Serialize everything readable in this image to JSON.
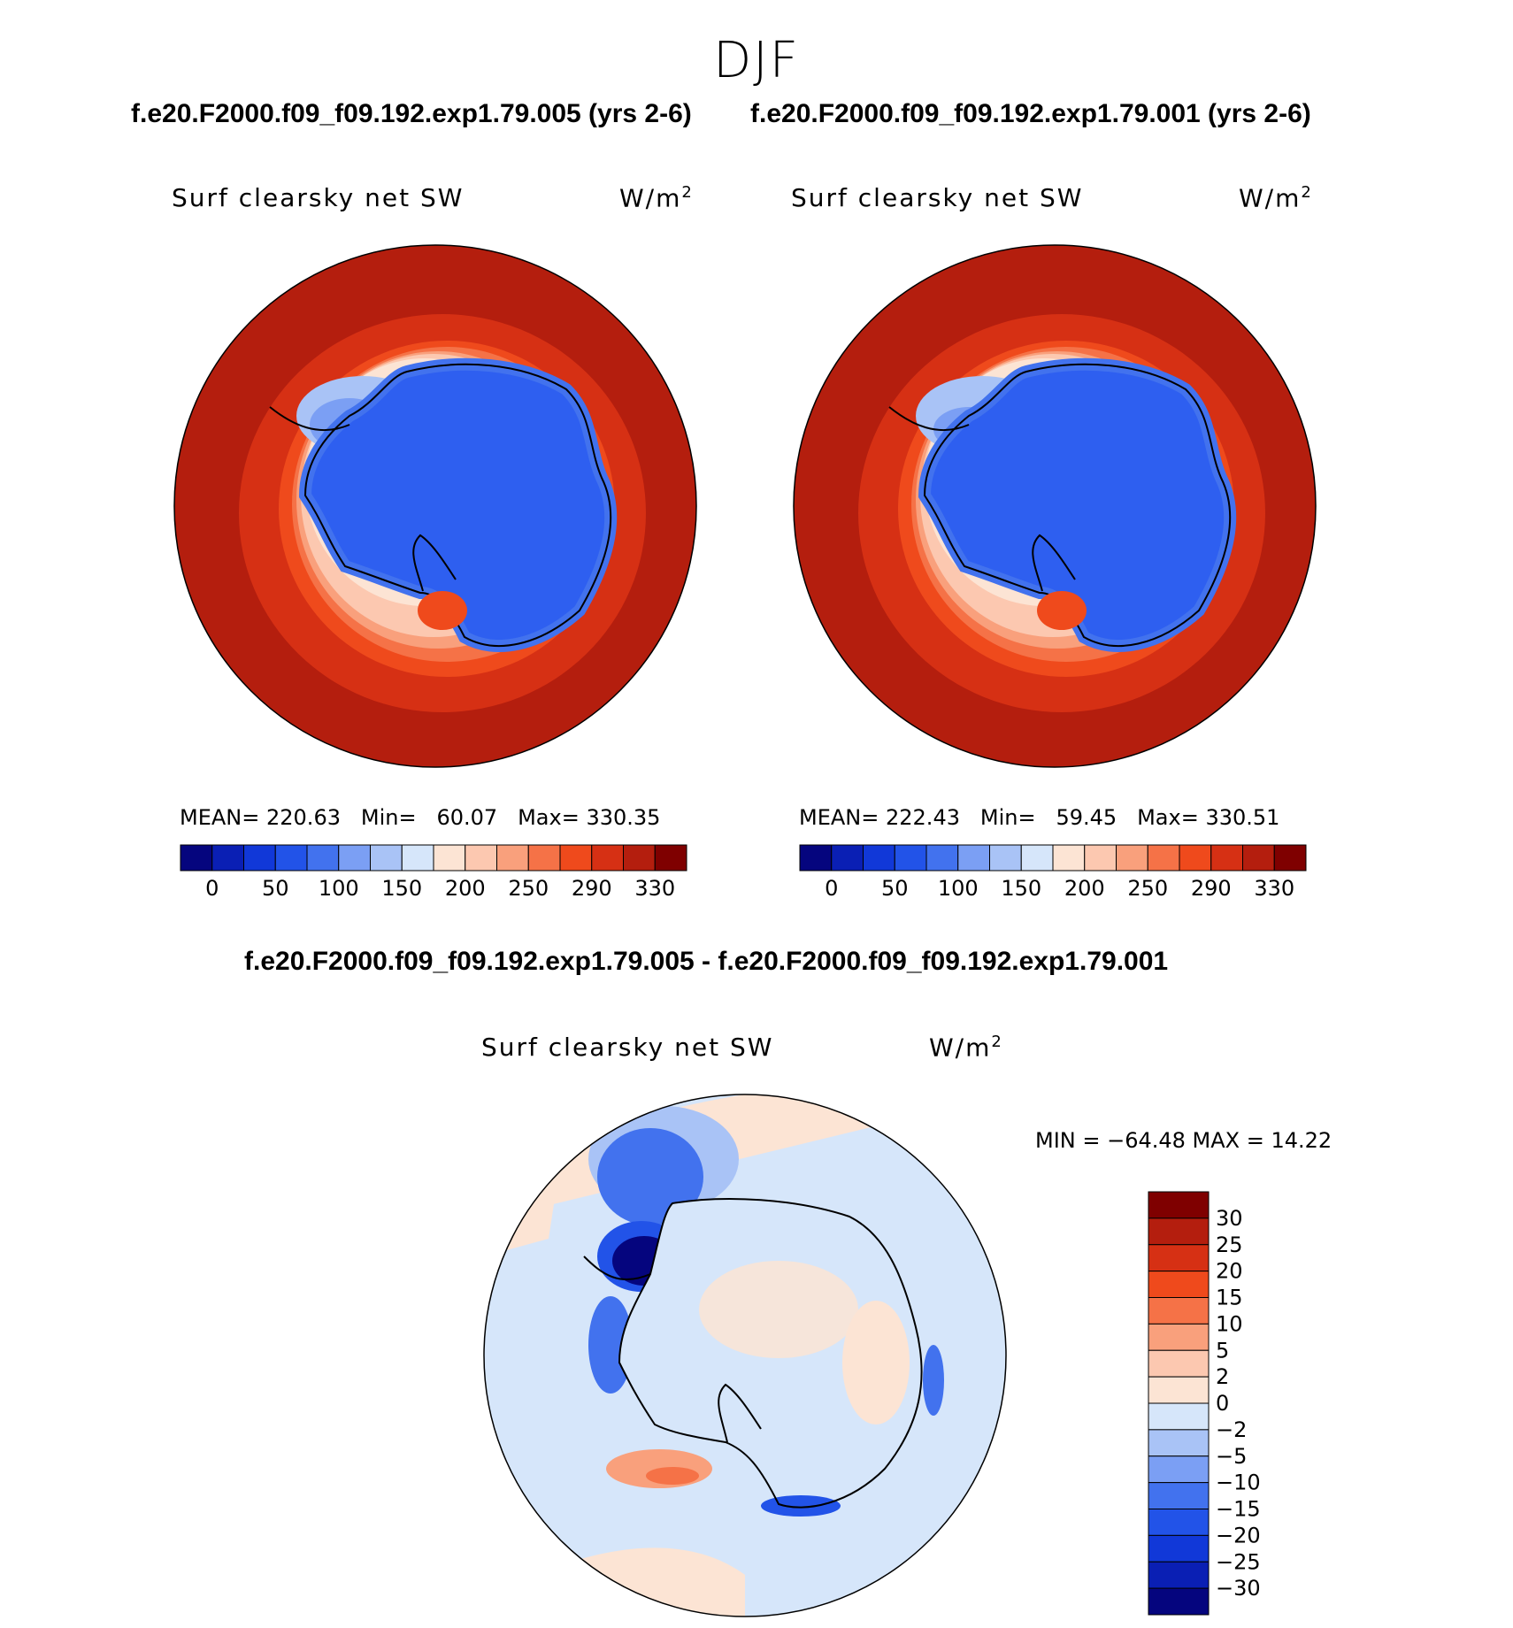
{
  "season": "DJF",
  "panel_titles": {
    "left": "f.e20.F2000.f09_f09.192.exp1.79.005 (yrs 2-6)",
    "right": "f.e20.F2000.f09_f09.192.exp1.79.001 (yrs 2-6)",
    "diff": "f.e20.F2000.f09_f09.192.exp1.79.005 - f.e20.F2000.f09_f09.192.exp1.79.001"
  },
  "variable": "Surf clearsky net SW",
  "units_base": "W/m",
  "units_exp": "2",
  "stats": {
    "left": {
      "mean_label": "MEAN=",
      "mean": "220.63",
      "min_label": "Min=",
      "min": "60.07",
      "max_label": "Max=",
      "max": "330.35"
    },
    "right": {
      "mean_label": "MEAN=",
      "mean": "222.43",
      "min_label": "Min=",
      "min": "59.45",
      "max_label": "Max=",
      "max": "330.51"
    },
    "diff": {
      "text": "MIN = −64.48 MAX =   14.22"
    }
  },
  "chart_data": [
    {
      "type": "heatmap",
      "title": "f.e20.F2000.f09_f09.192.exp1.79.005 (yrs 2-6)",
      "variable": "Surf clearsky net SW",
      "units": "W/m2",
      "projection": "south polar stereographic",
      "mean": 220.63,
      "min": 60.07,
      "max": 330.35,
      "colorbar_ticks": [
        "0",
        "50",
        "100",
        "150",
        "200",
        "250",
        "290",
        "330"
      ],
      "colorbar_colors": [
        "#05057e",
        "#0a1fb4",
        "#1138d8",
        "#2253e8",
        "#4272ee",
        "#7b9ff4",
        "#a9c3f6",
        "#d6e6fa",
        "#fce4d4",
        "#fcc8b0",
        "#f9a07c",
        "#f57247",
        "#ef4a1c",
        "#d63014",
        "#b41e0e",
        "#7f0000"
      ]
    },
    {
      "type": "heatmap",
      "title": "f.e20.F2000.f09_f09.192.exp1.79.001 (yrs 2-6)",
      "variable": "Surf clearsky net SW",
      "units": "W/m2",
      "projection": "south polar stereographic",
      "mean": 222.43,
      "min": 59.45,
      "max": 330.51,
      "colorbar_ticks": [
        "0",
        "50",
        "100",
        "150",
        "200",
        "250",
        "290",
        "330"
      ],
      "colorbar_colors": [
        "#05057e",
        "#0a1fb4",
        "#1138d8",
        "#2253e8",
        "#4272ee",
        "#7b9ff4",
        "#a9c3f6",
        "#d6e6fa",
        "#fce4d4",
        "#fcc8b0",
        "#f9a07c",
        "#f57247",
        "#ef4a1c",
        "#d63014",
        "#b41e0e",
        "#7f0000"
      ]
    },
    {
      "type": "heatmap",
      "title": "f.e20.F2000.f09_f09.192.exp1.79.005 - f.e20.F2000.f09_f09.192.exp1.79.001",
      "variable": "Surf clearsky net SW",
      "units": "W/m2",
      "projection": "south polar stereographic",
      "min": -64.48,
      "max": 14.22,
      "colorbar_ticks": [
        "30",
        "25",
        "20",
        "15",
        "10",
        "5",
        "2",
        "0",
        "−2",
        "−5",
        "−10",
        "−15",
        "−20",
        "−25",
        "−30"
      ],
      "colorbar_colors": [
        "#7f0000",
        "#b41e0e",
        "#d63014",
        "#ef4a1c",
        "#f57247",
        "#f9a07c",
        "#fcc8b0",
        "#fce4d4",
        "#d6e6fa",
        "#a9c3f6",
        "#7b9ff4",
        "#4272ee",
        "#2253e8",
        "#1138d8",
        "#0a1fb4",
        "#05057e"
      ]
    }
  ]
}
